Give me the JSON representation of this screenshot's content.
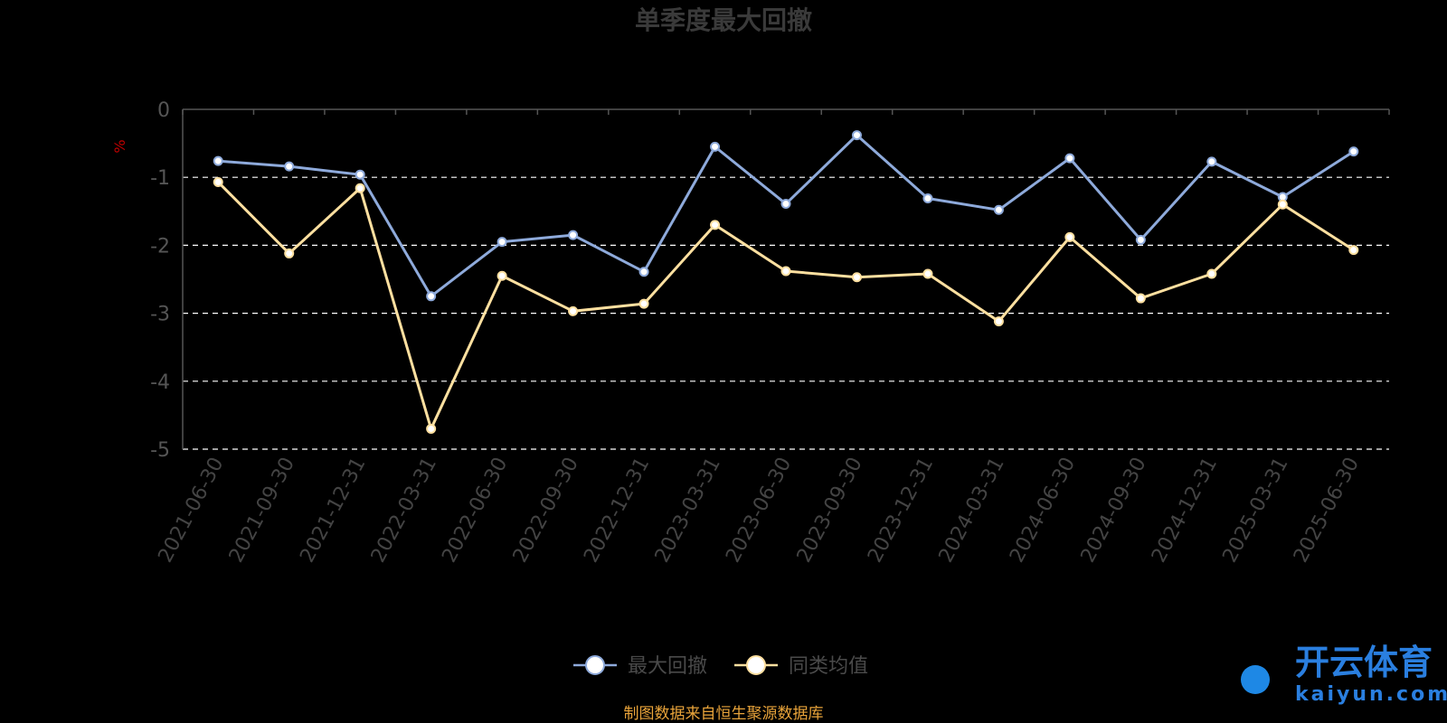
{
  "chart_data": {
    "type": "line",
    "title": "单季度最大回撤",
    "ylabel": "%",
    "ylim": [
      -5,
      0
    ],
    "yticks": [
      0,
      -1,
      -2,
      -3,
      -4,
      -5
    ],
    "grid": true,
    "legend_position": "bottom-center",
    "categories": [
      "2021-06-30",
      "2021-09-30",
      "2021-12-31",
      "2022-03-31",
      "2022-06-30",
      "2022-09-30",
      "2022-12-31",
      "2023-03-31",
      "2023-06-30",
      "2023-09-30",
      "2023-12-31",
      "2024-03-31",
      "2024-06-30",
      "2024-09-30",
      "2024-12-31",
      "2025-03-31",
      "2025-06-30"
    ],
    "series": [
      {
        "name": "最大回撤",
        "color": "#8eaadb",
        "values": [
          -0.76,
          -0.84,
          -0.96,
          -2.75,
          -1.95,
          -1.85,
          -2.39,
          -0.55,
          -1.39,
          -0.38,
          -1.31,
          -1.48,
          -0.72,
          -1.92,
          -0.77,
          -1.29,
          -0.62
        ]
      },
      {
        "name": "同类均值",
        "color": "#ffe0a0",
        "values": [
          -1.07,
          -2.12,
          -1.16,
          -4.7,
          -2.45,
          -2.97,
          -2.86,
          -1.7,
          -2.38,
          -2.47,
          -2.42,
          -3.12,
          -1.88,
          -2.78,
          -2.42,
          -1.4,
          -2.07
        ]
      }
    ]
  },
  "source_note": "制图数据来自恒生聚源数据库",
  "watermark": {
    "brand_cn": "开云体育",
    "brand_en": "kaiyun.com"
  }
}
